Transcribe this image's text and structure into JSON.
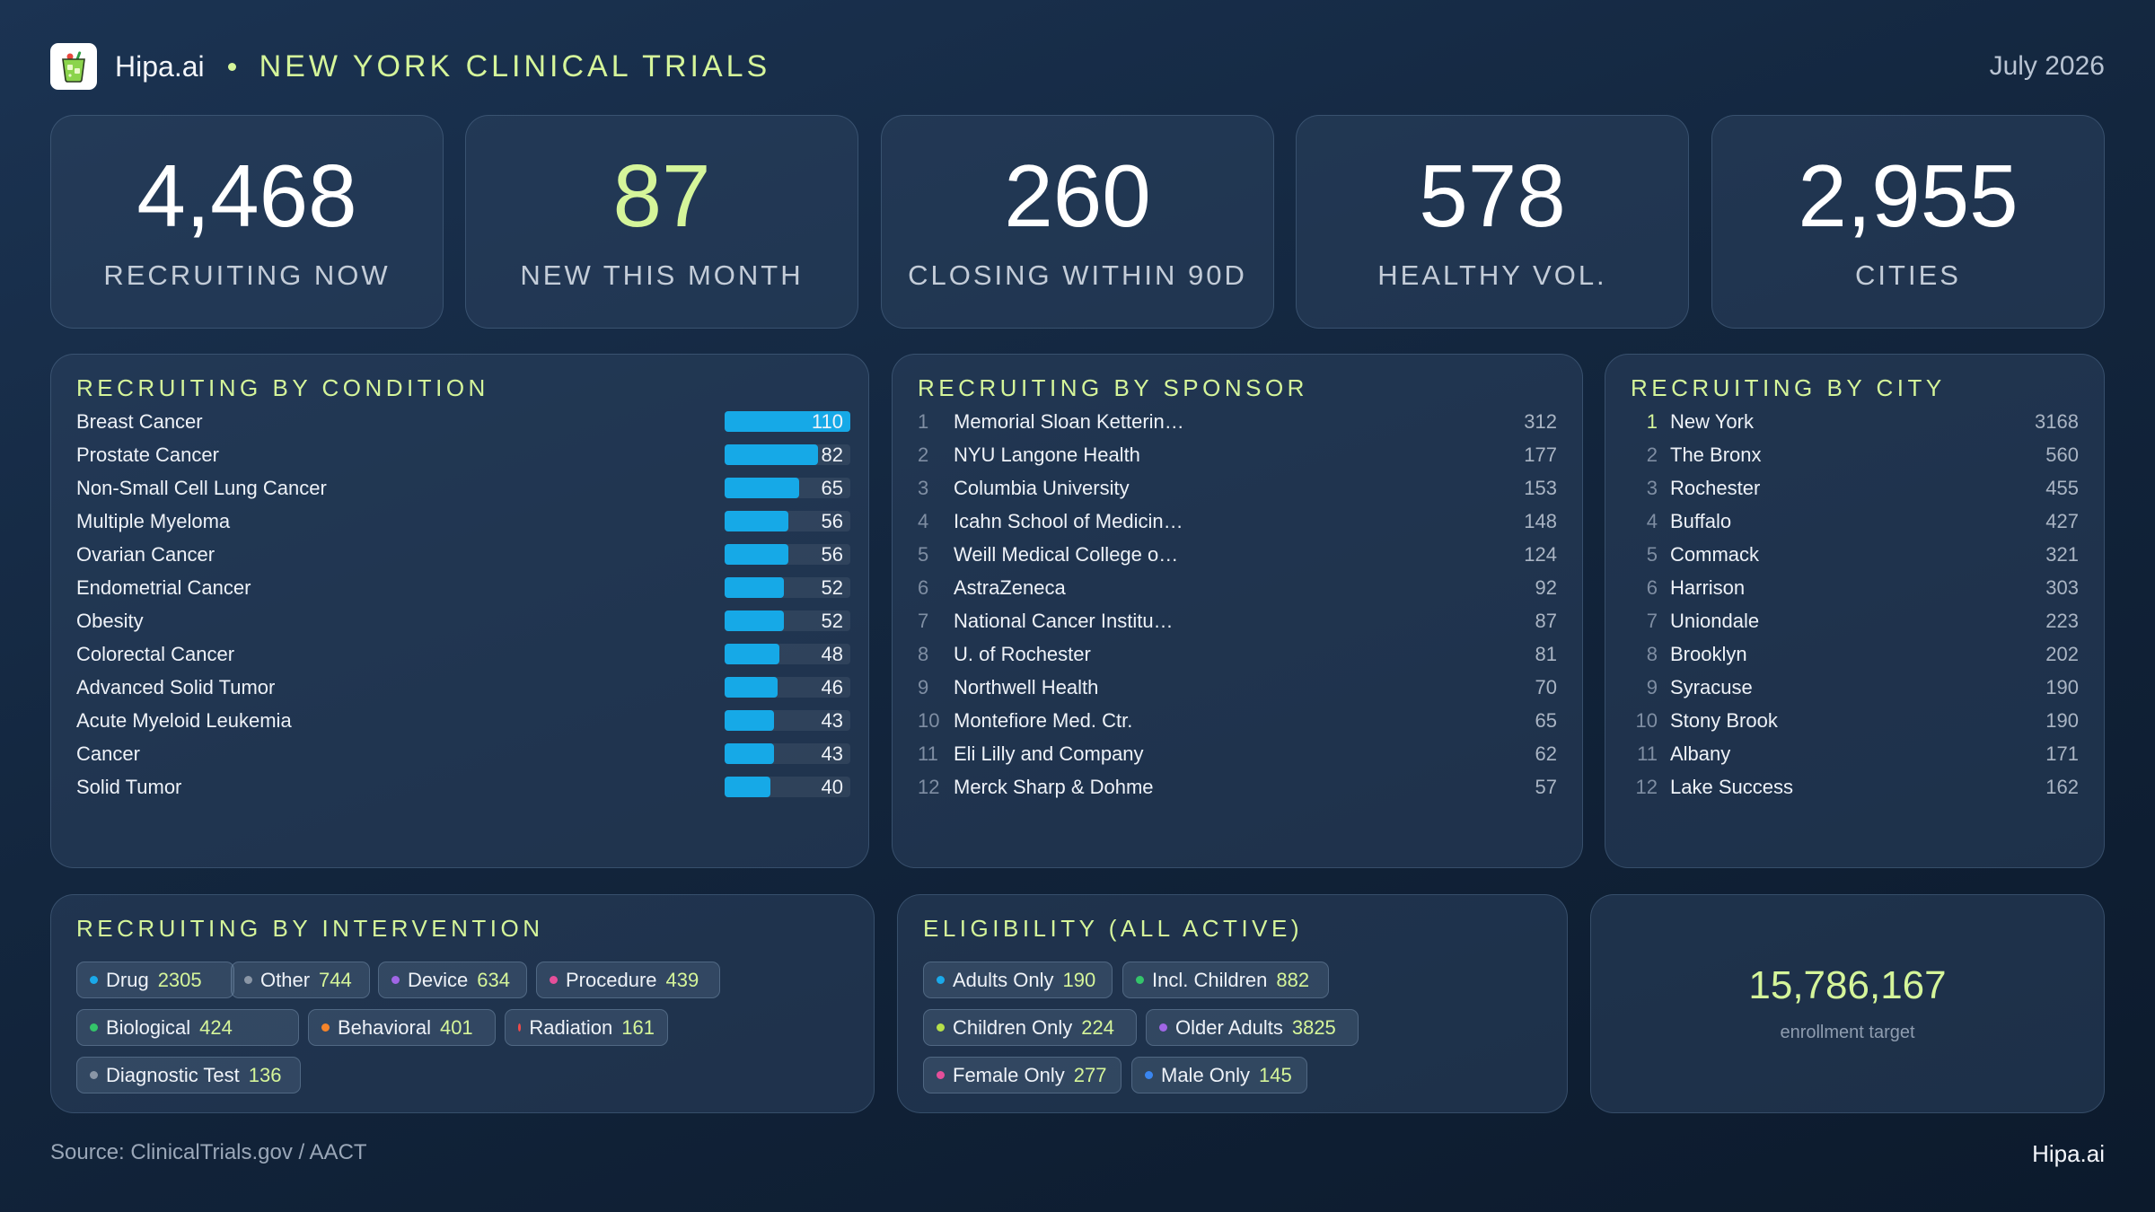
{
  "header": {
    "logo_icon": "cocktail-glass-icon",
    "brand": "Hipa.ai",
    "title": "NEW YORK CLINICAL TRIALS",
    "date": "July 2026"
  },
  "kpis": [
    {
      "value": "4,468",
      "label": "RECRUITING NOW"
    },
    {
      "value": "87",
      "label": "NEW THIS MONTH"
    },
    {
      "value": "260",
      "label": "CLOSING WITHIN 90D"
    },
    {
      "value": "578",
      "label": "HEALTHY VOL."
    },
    {
      "value": "2,955",
      "label": "CITIES"
    }
  ],
  "conditions": {
    "title": "RECRUITING BY CONDITION",
    "max": 110,
    "bar_color": "#16a9e7",
    "items": [
      {
        "name": "Breast Cancer",
        "value": 110
      },
      {
        "name": "Prostate Cancer",
        "value": 82
      },
      {
        "name": "Non-Small Cell Lung Cancer",
        "value": 65
      },
      {
        "name": "Multiple Myeloma",
        "value": 56
      },
      {
        "name": "Ovarian Cancer",
        "value": 56
      },
      {
        "name": "Endometrial Cancer",
        "value": 52
      },
      {
        "name": "Obesity",
        "value": 52
      },
      {
        "name": "Colorectal Cancer",
        "value": 48
      },
      {
        "name": "Advanced Solid Tumor",
        "value": 46
      },
      {
        "name": "Acute Myeloid Leukemia",
        "value": 43
      },
      {
        "name": "Cancer",
        "value": 43
      },
      {
        "name": "Solid Tumor",
        "value": 40
      }
    ]
  },
  "sponsors": {
    "title": "RECRUITING BY SPONSOR",
    "items": [
      {
        "rank": "1",
        "name": "Memorial Sloan Ketterin…",
        "value": "312"
      },
      {
        "rank": "2",
        "name": "NYU Langone Health",
        "value": "177"
      },
      {
        "rank": "3",
        "name": "Columbia University",
        "value": "153"
      },
      {
        "rank": "4",
        "name": "Icahn School of Medicin…",
        "value": "148"
      },
      {
        "rank": "5",
        "name": "Weill Medical College o…",
        "value": "124"
      },
      {
        "rank": "6",
        "name": "AstraZeneca",
        "value": "92"
      },
      {
        "rank": "7",
        "name": "National Cancer Institu…",
        "value": "87"
      },
      {
        "rank": "8",
        "name": "U. of Rochester",
        "value": "81"
      },
      {
        "rank": "9",
        "name": "Northwell Health",
        "value": "70"
      },
      {
        "rank": "10",
        "name": "Montefiore Med. Ctr.",
        "value": "65"
      },
      {
        "rank": "11",
        "name": "Eli Lilly and Company",
        "value": "62"
      },
      {
        "rank": "12",
        "name": "Merck Sharp & Dohme",
        "value": "57"
      }
    ]
  },
  "cities": {
    "title": "RECRUITING BY CITY",
    "items": [
      {
        "rank": "1",
        "name": "New York",
        "value": "3168"
      },
      {
        "rank": "2",
        "name": "The Bronx",
        "value": "560"
      },
      {
        "rank": "3",
        "name": "Rochester",
        "value": "455"
      },
      {
        "rank": "4",
        "name": "Buffalo",
        "value": "427"
      },
      {
        "rank": "5",
        "name": "Commack",
        "value": "321"
      },
      {
        "rank": "6",
        "name": "Harrison",
        "value": "303"
      },
      {
        "rank": "7",
        "name": "Uniondale",
        "value": "223"
      },
      {
        "rank": "8",
        "name": "Brooklyn",
        "value": "202"
      },
      {
        "rank": "9",
        "name": "Syracuse",
        "value": "190"
      },
      {
        "rank": "10",
        "name": "Stony Brook",
        "value": "190"
      },
      {
        "rank": "11",
        "name": "Albany",
        "value": "171"
      },
      {
        "rank": "12",
        "name": "Lake Success",
        "value": "162"
      }
    ]
  },
  "interventions": {
    "title": "RECRUITING BY INTERVENTION",
    "chips": [
      {
        "label": "Drug",
        "value": "2305",
        "color": "#1aa9ea"
      },
      {
        "label": "Other",
        "value": "744",
        "color": "#8a96a6"
      },
      {
        "label": "Device",
        "value": "634",
        "color": "#a066e6"
      },
      {
        "label": "Procedure",
        "value": "439",
        "color": "#e54f9a"
      },
      {
        "label": "Biological",
        "value": "424",
        "color": "#34c46a"
      },
      {
        "label": "Behavioral",
        "value": "401",
        "color": "#f5842a"
      },
      {
        "label": "Radiation",
        "value": "161",
        "color": "#ef4a4a"
      },
      {
        "label": "Diagnostic Test",
        "value": "136",
        "color": "#8a96a6"
      }
    ]
  },
  "eligibility": {
    "title": "ELIGIBILITY (ALL ACTIVE)",
    "chips": [
      {
        "label": "Adults Only",
        "value": "190",
        "color": "#1aa9ea"
      },
      {
        "label": "Incl. Children",
        "value": "882",
        "color": "#34c46a"
      },
      {
        "label": "Children Only",
        "value": "224",
        "color": "#b6e04a"
      },
      {
        "label": "Older Adults",
        "value": "3825",
        "color": "#a066e6"
      },
      {
        "label": "Female Only",
        "value": "277",
        "color": "#e54f9a"
      },
      {
        "label": "Male Only",
        "value": "145",
        "color": "#3a86f0"
      }
    ]
  },
  "enrollment": {
    "value": "15,786,167",
    "label": "enrollment target"
  },
  "footer": {
    "source": "Source: ClinicalTrials.gov / AACT",
    "brand": "Hipa.ai"
  }
}
